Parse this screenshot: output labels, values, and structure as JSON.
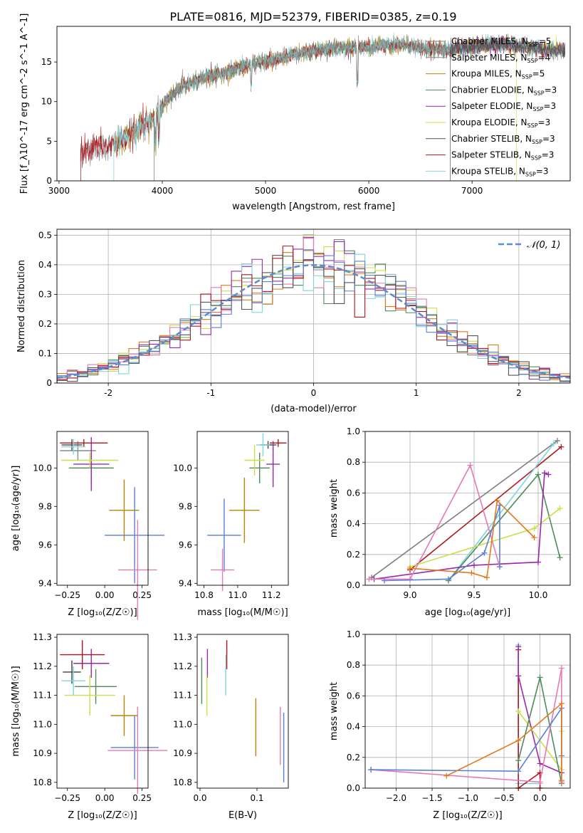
{
  "figure": {
    "title": "PLATE=0816, MJD=52379, FIBERID=0385, z=0.19"
  },
  "models": [
    {
      "name": "Chabrier MILES",
      "nssp": "5",
      "color": "#7f7f7f"
    },
    {
      "name": "Salpeter MILES",
      "nssp": "4",
      "color": "#8a8a8a"
    },
    {
      "name": "Kroupa MILES",
      "nssp": "5",
      "color": "#b8860b"
    },
    {
      "name": "Chabrier ELODIE",
      "nssp": "3",
      "color": "#4f8a5b"
    },
    {
      "name": "Salpeter ELODIE",
      "nssp": "3",
      "color": "#9b27b0"
    },
    {
      "name": "Kroupa ELODIE",
      "nssp": "3",
      "color": "#c9e04a"
    },
    {
      "name": "Chabrier STELIB",
      "nssp": "3",
      "color": "#555555"
    },
    {
      "name": "Salpeter STELIB",
      "nssp": "3",
      "color": "#b0161d"
    },
    {
      "name": "Kroupa STELIB",
      "nssp": "3",
      "color": "#7fd3dc"
    }
  ],
  "chart_data": [
    {
      "id": "spectrum",
      "type": "line",
      "xlabel": "wavelength [Angstrom, rest frame]",
      "ylabel": "Flux [f_λ10^-17 erg cm^-2 s^-1 A^-1]",
      "xlim": [
        2980,
        7950
      ],
      "ylim": [
        0,
        19.5
      ],
      "xticks": [
        3000,
        4000,
        5000,
        6000,
        7000
      ],
      "yticks": [
        0,
        5,
        10,
        15
      ],
      "grid": false,
      "legend": "right",
      "continuum": {
        "x": [
          3200,
          3300,
          3400,
          3500,
          3600,
          3700,
          3800,
          3900,
          4000,
          4100,
          4200,
          4300,
          4400,
          4500,
          4700,
          4900,
          5100,
          5300,
          5500,
          5700,
          5900,
          6100,
          6300,
          6500,
          6700,
          6900,
          7100,
          7300,
          7500,
          7800
        ],
        "y": [
          3.8,
          4.2,
          4.3,
          4.4,
          5.0,
          6.0,
          6.8,
          7.5,
          9.5,
          11.0,
          12.0,
          12.5,
          13.0,
          13.3,
          14.0,
          14.8,
          15.3,
          16.0,
          16.5,
          16.8,
          16.8,
          17.0,
          17.2,
          16.8,
          16.5,
          16.8,
          17.1,
          17.3,
          16.9,
          16.5
        ]
      },
      "start_wavelengths": [
        3210,
        3530,
        3920,
        6790,
        7430
      ]
    },
    {
      "id": "residuals",
      "type": "step",
      "xlabel": "(data-model)/error",
      "ylabel": "Normed distribution",
      "xlim": [
        -2.5,
        2.5
      ],
      "ylim": [
        0,
        0.52
      ],
      "xticks": [
        -2,
        -1,
        0,
        1,
        2
      ],
      "yticks": [
        0.0,
        0.1,
        0.2,
        0.3,
        0.4,
        0.5
      ],
      "grid": true,
      "legend": "top-right",
      "legend_label": "𝒩(0, 1)",
      "reference_curve": "normal(0,1)",
      "bins": [
        -2.5,
        2.5,
        50
      ]
    },
    {
      "id": "age-Z",
      "type": "errorbar",
      "xlabel": "Z [log₁₀(Z/Z☉)]",
      "ylabel": "age  [log₁₀(age/yr)]",
      "xlim": [
        -0.32,
        0.29
      ],
      "ylim": [
        9.39,
        10.19
      ],
      "xticks": [
        -0.25,
        0.0,
        0.25
      ],
      "xticklabels": [
        "−0.25",
        "0.00",
        "0.25"
      ],
      "yticks": [
        9.4,
        9.6,
        9.8,
        10.0
      ],
      "yticklabels": [
        "9.4",
        "9.6",
        "9.8",
        "10.0"
      ],
      "points": [
        {
          "model": 0,
          "x": -0.22,
          "xerr": 0.06,
          "y": 10.12,
          "yerr": 0.02
        },
        {
          "model": 1,
          "x": -0.18,
          "xerr": 0.12,
          "y": 10.09,
          "yerr": 0.05
        },
        {
          "model": 2,
          "x": 0.13,
          "xerr": 0.1,
          "y": 9.78,
          "yerr": 0.16
        },
        {
          "model": 3,
          "x": -0.09,
          "xerr": 0.15,
          "y": 10.0,
          "yerr": 0.08
        },
        {
          "model": 4,
          "x": -0.09,
          "xerr": 0.12,
          "y": 10.02,
          "yerr": 0.14
        },
        {
          "model": 5,
          "x": -0.1,
          "xerr": 0.19,
          "y": 10.04,
          "yerr": 0.04
        },
        {
          "model": 6,
          "x": -0.22,
          "xerr": 0.07,
          "y": 10.12,
          "yerr": 0.03
        },
        {
          "model": 7,
          "x": -0.14,
          "xerr": 0.16,
          "y": 10.13,
          "yerr": 0.02
        },
        {
          "model": 8,
          "x": -0.21,
          "xerr": 0.08,
          "y": 10.11,
          "yerr": 0.04
        }
      ],
      "extra_points": [
        {
          "color": "#5b7fd6",
          "x": 0.2,
          "xerr": 0.2,
          "y": 9.65,
          "yerr": 0.25
        },
        {
          "color": "#e67ab4",
          "x": 0.22,
          "xerr": 0.13,
          "y": 9.47,
          "yerr": 0.26
        }
      ]
    },
    {
      "id": "age-mass",
      "type": "errorbar",
      "xlabel": "mass [log₁₀(M/M☉)]",
      "ylabel": "",
      "xlim": [
        10.76,
        11.3
      ],
      "ylim": [
        9.39,
        10.19
      ],
      "xticks": [
        10.8,
        11.0,
        11.2
      ],
      "xticklabels": [
        "10.8",
        "11.0",
        "11.2"
      ],
      "yticks": [
        9.4,
        9.6,
        9.8,
        10.0
      ],
      "yticklabels": [
        "9.4",
        "9.6",
        "9.8",
        "10.0"
      ],
      "points": [
        {
          "model": 0,
          "x": 11.18,
          "xerr": 0.04,
          "y": 10.12,
          "yerr": 0.02
        },
        {
          "model": 2,
          "x": 11.04,
          "xerr": 0.09,
          "y": 9.78,
          "yerr": 0.17
        },
        {
          "model": 3,
          "x": 11.13,
          "xerr": 0.06,
          "y": 10.0,
          "yerr": 0.08
        },
        {
          "model": 4,
          "x": 11.21,
          "xerr": 0.04,
          "y": 10.02,
          "yerr": 0.12
        },
        {
          "model": 5,
          "x": 11.1,
          "xerr": 0.06,
          "y": 10.04,
          "yerr": 0.08
        },
        {
          "model": 6,
          "x": 11.18,
          "xerr": 0.05,
          "y": 10.12,
          "yerr": 0.02
        },
        {
          "model": 7,
          "x": 11.24,
          "xerr": 0.05,
          "y": 10.13,
          "yerr": 0.02
        },
        {
          "model": 8,
          "x": 11.15,
          "xerr": 0.04,
          "y": 10.12,
          "yerr": 0.06
        }
      ],
      "extra_points": [
        {
          "color": "#5b7fd6",
          "x": 10.92,
          "xerr": 0.1,
          "y": 9.65,
          "yerr": 0.19
        },
        {
          "color": "#e67ab4",
          "x": 10.91,
          "xerr": 0.07,
          "y": 9.47,
          "yerr": 0.11
        }
      ]
    },
    {
      "id": "mass-weight-age",
      "type": "line",
      "xlabel": "age  [log₁₀(age/yr)]",
      "ylabel": "mass weight",
      "xlim": [
        8.65,
        10.25
      ],
      "ylim": [
        0,
        1.0
      ],
      "xticks": [
        9.0,
        9.5,
        10.0
      ],
      "xticklabels": [
        "9.0",
        "9.5",
        "10.0"
      ],
      "yticks": [
        0.0,
        0.2,
        0.4,
        0.6,
        0.8,
        1.0
      ],
      "yticklabels": [
        "0.0",
        "0.2",
        "0.4",
        "0.6",
        "0.8",
        "1.0"
      ],
      "grid": true,
      "series": [
        {
          "color": "#7f7f7f",
          "x": [
            8.7,
            10.15
          ],
          "y": [
            0.05,
            0.94
          ]
        },
        {
          "color": "#b0161d",
          "x": [
            9.0,
            10.18
          ],
          "y": [
            0.1,
            0.9
          ]
        },
        {
          "color": "#7fd3dc",
          "x": [
            9.3,
            10.12
          ],
          "y": [
            0.03,
            0.92
          ]
        },
        {
          "color": "#4f8a5b",
          "x": [
            9.3,
            10.0,
            10.17
          ],
          "y": [
            0.03,
            0.72,
            0.18
          ]
        },
        {
          "color": "#c9e04a",
          "x": [
            9.0,
            9.97,
            10.17
          ],
          "y": [
            0.12,
            0.37,
            0.5
          ]
        },
        {
          "color": "#9b27b0",
          "x": [
            8.72,
            9.5,
            10.0,
            10.05,
            10.08
          ],
          "y": [
            0.04,
            0.13,
            0.15,
            0.73,
            0.72
          ]
        },
        {
          "color": "#e67ab4",
          "x": [
            8.68,
            9.0,
            9.47,
            9.7
          ],
          "y": [
            0.04,
            0.04,
            0.78,
            0.12
          ]
        },
        {
          "color": "#5b7fd6",
          "x": [
            8.8,
            9.3,
            9.58,
            9.7,
            9.7
          ],
          "y": [
            0.03,
            0.04,
            0.21,
            0.52,
            0.12
          ]
        },
        {
          "color": "#e07b1f",
          "x": [
            9.0,
            9.48,
            9.6,
            9.68,
            9.97
          ],
          "y": [
            0.11,
            0.08,
            0.05,
            0.55,
            0.31
          ]
        }
      ]
    },
    {
      "id": "mass-Z",
      "type": "errorbar",
      "xlabel": "Z [log₁₀(Z/Z☉)]",
      "ylabel": "mass [log₁₀(M/M☉)]",
      "xlim": [
        -0.32,
        0.29
      ],
      "ylim": [
        10.78,
        11.31
      ],
      "xticks": [
        -0.25,
        0.0,
        0.25
      ],
      "xticklabels": [
        "−0.25",
        "0.00",
        "0.25"
      ],
      "yticks": [
        10.8,
        10.9,
        11.0,
        11.1,
        11.2,
        11.3
      ],
      "yticklabels": [
        "10.8",
        "10.9",
        "11.0",
        "11.1",
        "11.2",
        "11.3"
      ],
      "points": [
        {
          "model": 0,
          "x": -0.22,
          "xerr": 0.06,
          "y": 11.18,
          "yerr": 0.04
        },
        {
          "model": 2,
          "x": 0.13,
          "xerr": 0.09,
          "y": 11.03,
          "yerr": 0.07
        },
        {
          "model": 3,
          "x": -0.06,
          "xerr": 0.14,
          "y": 11.13,
          "yerr": 0.06
        },
        {
          "model": 4,
          "x": -0.09,
          "xerr": 0.12,
          "y": 11.21,
          "yerr": 0.05
        },
        {
          "model": 5,
          "x": -0.1,
          "xerr": 0.17,
          "y": 11.1,
          "yerr": 0.07
        },
        {
          "model": 6,
          "x": -0.22,
          "xerr": 0.06,
          "y": 11.18,
          "yerr": 0.04
        },
        {
          "model": 7,
          "x": -0.15,
          "xerr": 0.15,
          "y": 11.24,
          "yerr": 0.05
        },
        {
          "model": 8,
          "x": -0.21,
          "xerr": 0.08,
          "y": 11.15,
          "yerr": 0.05
        }
      ],
      "extra_points": [
        {
          "color": "#5b7fd6",
          "x": 0.2,
          "xerr": 0.16,
          "y": 10.92,
          "yerr": 0.11
        },
        {
          "color": "#e67ab4",
          "x": 0.22,
          "xerr": 0.2,
          "y": 10.91,
          "yerr": 0.15
        }
      ]
    },
    {
      "id": "mass-ebv",
      "type": "errorbar",
      "xlabel": "E(B-V)",
      "ylabel": "",
      "xlim": [
        -0.005,
        0.155
      ],
      "ylim": [
        10.78,
        11.31
      ],
      "xticks": [
        0.0,
        0.1
      ],
      "xticklabels": [
        "0.0",
        "0.1"
      ],
      "yticks": [
        10.8,
        10.9,
        11.0,
        11.1,
        11.2,
        11.3
      ],
      "yticklabels": [
        "10.8",
        "10.9",
        "11.0",
        "11.1",
        "11.2",
        "11.3"
      ],
      "points": [
        {
          "model": 3,
          "x": 0.003,
          "xerr": 0,
          "y": 11.15,
          "yerr": 0.08
        },
        {
          "model": 4,
          "x": 0.013,
          "xerr": 0,
          "y": 11.21,
          "yerr": 0.05
        },
        {
          "model": 5,
          "x": 0.012,
          "xerr": 0,
          "y": 11.1,
          "yerr": 0.07
        },
        {
          "model": 7,
          "x": 0.047,
          "xerr": 0,
          "y": 11.24,
          "yerr": 0.05
        },
        {
          "model": 8,
          "x": 0.045,
          "xerr": 0,
          "y": 11.15,
          "yerr": 0.05
        },
        {
          "model": 0,
          "x": 0.046,
          "xerr": 0,
          "y": 11.22,
          "yerr": 0.02
        },
        {
          "model": 2,
          "x": 0.098,
          "xerr": 0,
          "y": 10.99,
          "yerr": 0.1
        }
      ],
      "extra_points": [
        {
          "color": "#5b7fd6",
          "x": 0.147,
          "xerr": 0,
          "y": 10.92,
          "yerr": 0.12
        },
        {
          "color": "#e67ab4",
          "x": 0.141,
          "xerr": 0,
          "y": 10.96,
          "yerr": 0.1
        }
      ]
    },
    {
      "id": "mass-weight-Z",
      "type": "line",
      "xlabel": "Z [log₁₀(Z/Z☉)]",
      "ylabel": "mass weight",
      "xlim": [
        -2.43,
        0.42
      ],
      "ylim": [
        0,
        1.0
      ],
      "xticks": [
        -2.0,
        -1.5,
        -1.0,
        -0.5,
        0.0
      ],
      "xticklabels": [
        "−2.0",
        "−1.5",
        "−1.0",
        "−0.5",
        "0.0"
      ],
      "yticks": [
        0.0,
        0.2,
        0.4,
        0.6,
        0.8,
        1.0
      ],
      "yticklabels": [
        "0.0",
        "0.2",
        "0.4",
        "0.6",
        "0.8",
        "1.0"
      ],
      "grid": true,
      "series": [
        {
          "color": "#7fd3dc",
          "x": [
            -0.3,
            -0.3,
            0.0
          ],
          "y": [
            0.93,
            0.03,
            0.03
          ]
        },
        {
          "color": "#b0161d",
          "x": [
            -0.3,
            -0.3,
            0.0,
            0.0
          ],
          "y": [
            0.9,
            0.0,
            0.1,
            0.0
          ]
        },
        {
          "color": "#9b27b0",
          "x": [
            -0.3,
            -0.3,
            0.0,
            0.3
          ],
          "y": [
            0.92,
            0.73,
            0.16,
            0.1
          ]
        },
        {
          "color": "#c9e04a",
          "x": [
            -0.3,
            0.3,
            0.3
          ],
          "y": [
            0.5,
            0.12,
            0.37
          ]
        },
        {
          "color": "#4f8a5b",
          "x": [
            -0.3,
            0.0,
            0.3
          ],
          "y": [
            0.18,
            0.72,
            0.03
          ]
        },
        {
          "color": "#e67ab4",
          "x": [
            -2.35,
            0.0,
            0.3,
            0.3
          ],
          "y": [
            0.12,
            0.04,
            0.78,
            0.04
          ]
        },
        {
          "color": "#5b7fd6",
          "x": [
            -2.35,
            -0.3,
            0.3,
            0.3
          ],
          "y": [
            0.12,
            0.11,
            0.52,
            0.21
          ]
        },
        {
          "color": "#e07b1f",
          "x": [
            -1.3,
            -0.3,
            0.3,
            0.3
          ],
          "y": [
            0.08,
            0.31,
            0.55,
            0.05
          ]
        }
      ]
    }
  ]
}
